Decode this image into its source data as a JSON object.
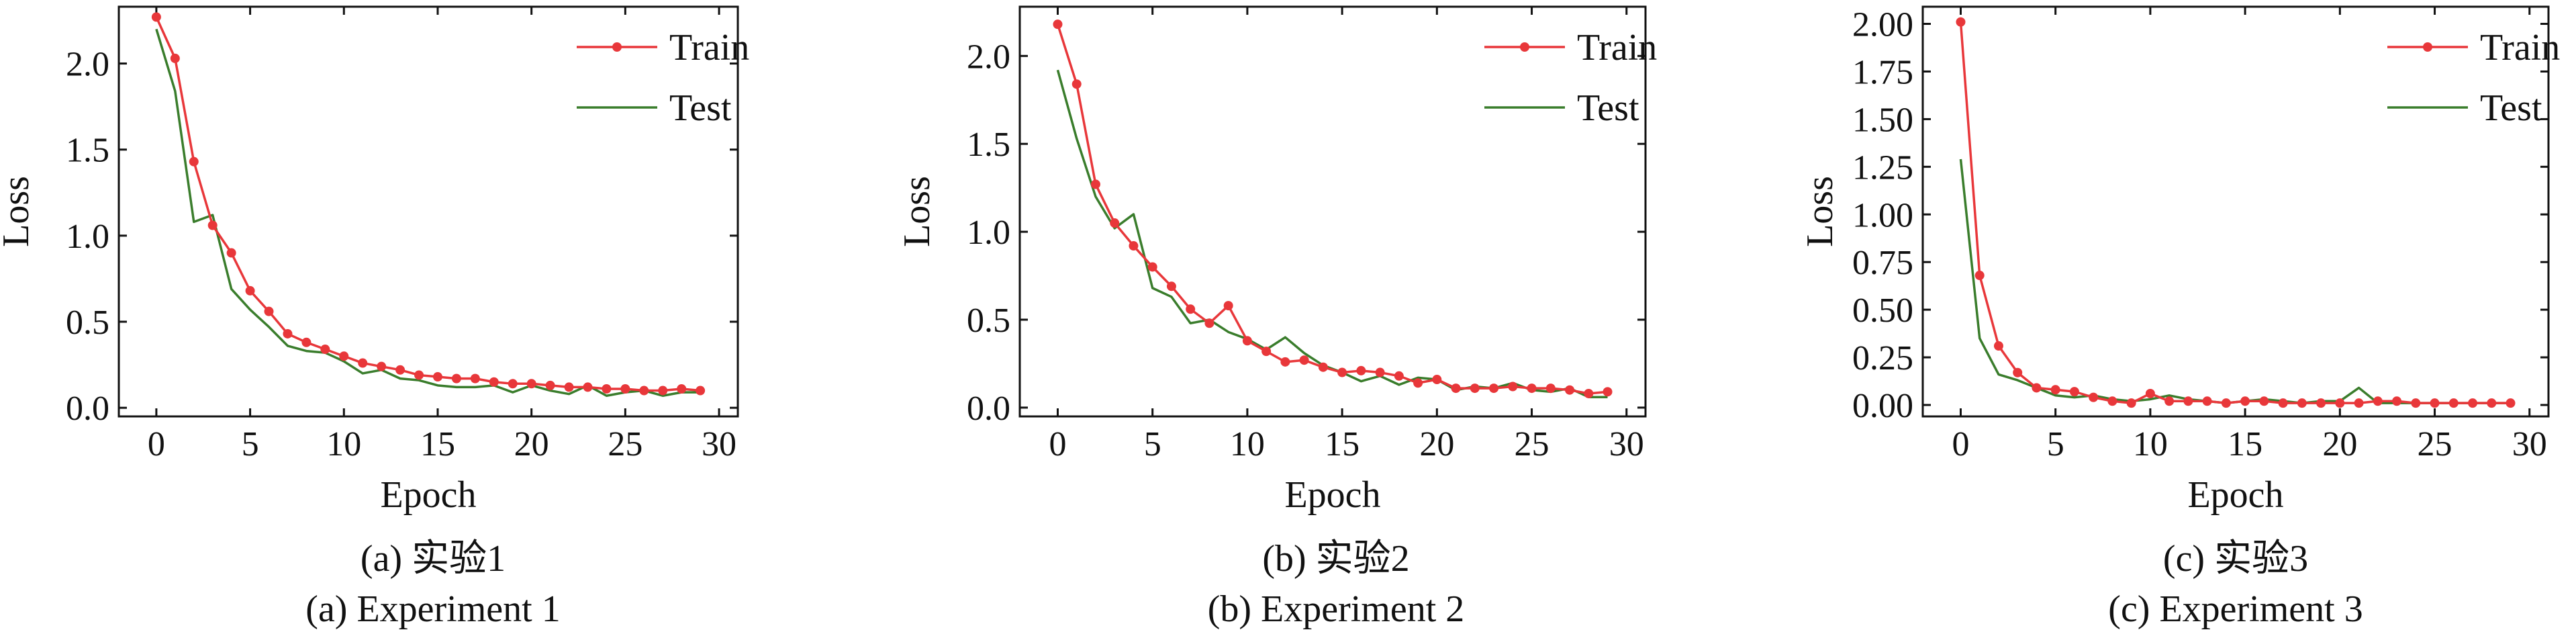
{
  "colors": {
    "train": "#e8373a",
    "test": "#3a7d2c",
    "axis": "#111111"
  },
  "chart_data": [
    {
      "type": "line",
      "caption_cn": "(a)  实验1",
      "caption_en": "(a)  Experiment 1",
      "xlabel": "Epoch",
      "ylabel": "Loss",
      "xlim": [
        -2,
        31
      ],
      "ylim": [
        -0.05,
        2.33
      ],
      "xticks": [
        0,
        5,
        10,
        15,
        20,
        25,
        30
      ],
      "xtick_labels": [
        "0",
        "5",
        "10",
        "15",
        "20",
        "25",
        "30"
      ],
      "yticks": [
        0.0,
        0.5,
        1.0,
        1.5,
        2.0
      ],
      "ytick_labels": [
        "0.0",
        "0.5",
        "1.0",
        "1.5",
        "2.0"
      ],
      "legend": "top-right",
      "series": [
        {
          "name": "Train",
          "marker": true,
          "x": [
            0,
            1,
            2,
            3,
            4,
            5,
            6,
            7,
            8,
            9,
            10,
            11,
            12,
            13,
            14,
            15,
            16,
            17,
            18,
            19,
            20,
            21,
            22,
            23,
            24,
            25,
            26,
            27,
            28,
            29
          ],
          "y": [
            2.27,
            2.03,
            1.43,
            1.06,
            0.9,
            0.68,
            0.56,
            0.43,
            0.38,
            0.34,
            0.3,
            0.26,
            0.24,
            0.22,
            0.19,
            0.18,
            0.17,
            0.17,
            0.15,
            0.14,
            0.14,
            0.13,
            0.12,
            0.12,
            0.11,
            0.11,
            0.1,
            0.1,
            0.11,
            0.1
          ]
        },
        {
          "name": "Test",
          "marker": false,
          "x": [
            0,
            1,
            2,
            3,
            4,
            5,
            6,
            7,
            8,
            9,
            10,
            11,
            12,
            13,
            14,
            15,
            16,
            17,
            18,
            19,
            20,
            21,
            22,
            23,
            24,
            25,
            26,
            27,
            28,
            29
          ],
          "y": [
            2.2,
            1.84,
            1.08,
            1.12,
            0.69,
            0.57,
            0.47,
            0.36,
            0.33,
            0.32,
            0.27,
            0.2,
            0.22,
            0.17,
            0.16,
            0.13,
            0.12,
            0.12,
            0.13,
            0.09,
            0.13,
            0.1,
            0.08,
            0.13,
            0.07,
            0.09,
            0.1,
            0.07,
            0.09,
            0.09
          ]
        }
      ]
    },
    {
      "type": "line",
      "caption_cn": "(b)  实验2",
      "caption_en": "(b)  Experiment 2",
      "xlabel": "Epoch",
      "ylabel": "Loss",
      "xlim": [
        -2,
        31
      ],
      "ylim": [
        -0.05,
        2.28
      ],
      "xticks": [
        0,
        5,
        10,
        15,
        20,
        25,
        30
      ],
      "xtick_labels": [
        "0",
        "5",
        "10",
        "15",
        "20",
        "25",
        "30"
      ],
      "yticks": [
        0.0,
        0.5,
        1.0,
        1.5,
        2.0
      ],
      "ytick_labels": [
        "0.0",
        "0.5",
        "1.0",
        "1.5",
        "2.0"
      ],
      "legend": "top-right",
      "series": [
        {
          "name": "Train",
          "marker": true,
          "x": [
            0,
            1,
            2,
            3,
            4,
            5,
            6,
            7,
            8,
            9,
            10,
            11,
            12,
            13,
            14,
            15,
            16,
            17,
            18,
            19,
            20,
            21,
            22,
            23,
            24,
            25,
            26,
            27,
            28,
            29
          ],
          "y": [
            2.18,
            1.84,
            1.27,
            1.05,
            0.92,
            0.8,
            0.69,
            0.56,
            0.48,
            0.58,
            0.38,
            0.32,
            0.26,
            0.27,
            0.23,
            0.2,
            0.21,
            0.2,
            0.18,
            0.14,
            0.16,
            0.11,
            0.11,
            0.11,
            0.12,
            0.11,
            0.11,
            0.1,
            0.08,
            0.09
          ]
        },
        {
          "name": "Test",
          "marker": false,
          "x": [
            0,
            1,
            2,
            3,
            4,
            5,
            6,
            7,
            8,
            9,
            10,
            11,
            12,
            13,
            14,
            15,
            16,
            17,
            18,
            19,
            20,
            21,
            22,
            23,
            24,
            25,
            26,
            27,
            28,
            29
          ],
          "y": [
            1.92,
            1.53,
            1.2,
            1.02,
            1.1,
            0.68,
            0.63,
            0.48,
            0.5,
            0.43,
            0.39,
            0.33,
            0.4,
            0.31,
            0.24,
            0.2,
            0.15,
            0.18,
            0.13,
            0.17,
            0.16,
            0.1,
            0.12,
            0.11,
            0.14,
            0.1,
            0.09,
            0.11,
            0.06,
            0.06
          ]
        }
      ]
    },
    {
      "type": "line",
      "caption_cn": "(c)  实验3",
      "caption_en": "(c)  Experiment 3",
      "xlabel": "Epoch",
      "ylabel": "Loss",
      "xlim": [
        -2,
        31
      ],
      "ylim": [
        -0.06,
        2.09
      ],
      "xticks": [
        0,
        5,
        10,
        15,
        20,
        25,
        30
      ],
      "xtick_labels": [
        "0",
        "5",
        "10",
        "15",
        "20",
        "25",
        "30"
      ],
      "yticks": [
        0.0,
        0.25,
        0.5,
        0.75,
        1.0,
        1.25,
        1.5,
        1.75,
        2.0
      ],
      "ytick_labels": [
        "0.00",
        "0.25",
        "0.50",
        "0.75",
        "1.00",
        "1.25",
        "1.50",
        "1.75",
        "2.00"
      ],
      "legend": "top-right",
      "series": [
        {
          "name": "Train",
          "marker": true,
          "x": [
            0,
            1,
            2,
            3,
            4,
            5,
            6,
            7,
            8,
            9,
            10,
            11,
            12,
            13,
            14,
            15,
            16,
            17,
            18,
            19,
            20,
            21,
            22,
            23,
            24,
            25,
            26,
            27,
            28,
            29
          ],
          "y": [
            2.01,
            0.68,
            0.31,
            0.17,
            0.09,
            0.08,
            0.07,
            0.04,
            0.02,
            0.01,
            0.06,
            0.02,
            0.02,
            0.02,
            0.01,
            0.02,
            0.02,
            0.01,
            0.01,
            0.01,
            0.01,
            0.01,
            0.02,
            0.02,
            0.01,
            0.01,
            0.01,
            0.01,
            0.01,
            0.01
          ]
        },
        {
          "name": "Test",
          "marker": false,
          "x": [
            0,
            1,
            2,
            3,
            4,
            5,
            6,
            7,
            8,
            9,
            10,
            11,
            12,
            13,
            14,
            15,
            16,
            17,
            18,
            19,
            20,
            21,
            22,
            23,
            24,
            25,
            26,
            27,
            28,
            29
          ],
          "y": [
            1.29,
            0.35,
            0.16,
            0.13,
            0.09,
            0.05,
            0.04,
            0.05,
            0.03,
            0.02,
            0.03,
            0.05,
            0.03,
            0.02,
            0.01,
            0.02,
            0.03,
            0.02,
            0.01,
            0.02,
            0.02,
            0.09,
            0.01,
            0.01,
            0.01,
            0.01,
            0.01,
            0.01,
            0.01,
            0.01
          ]
        }
      ]
    }
  ]
}
